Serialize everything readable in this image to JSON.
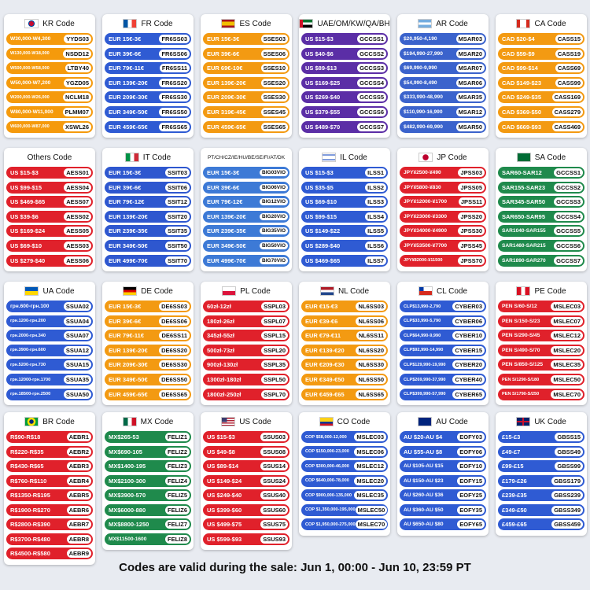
{
  "panels": [
    {
      "title": "KR Code",
      "items": [
        [
          "W30,000-W4,300",
          "YYDS03"
        ],
        [
          "W130,000-W18,000",
          "NSDD12"
        ],
        [
          "W500,000-W58,000",
          "LTBY40"
        ],
        [
          "W50,000-W7,200",
          "YGZD05"
        ],
        [
          "W200,000-W26,000",
          "NCLM18"
        ],
        [
          "W80,000-W11,000",
          "PLMM07"
        ],
        [
          "W600,000-W87,000",
          "XSWL26"
        ]
      ]
    },
    {
      "title": "FR Code",
      "items": [
        [
          "EUR 15€-3€",
          "FR6SS03"
        ],
        [
          "EUR 39€-6€",
          "FR6SS06"
        ],
        [
          "EUR 79€-11€",
          "FR6SS11"
        ],
        [
          "EUR 139€-20€",
          "FR6SS20"
        ],
        [
          "EUR 209€-30€",
          "FR6SS30"
        ],
        [
          "EUR 349€-50€",
          "FR6SS50"
        ],
        [
          "EUR 459€-65€",
          "FR6SS65"
        ]
      ]
    },
    {
      "title": "ES Code",
      "items": [
        [
          "EUR 15€-3€",
          "SSES03"
        ],
        [
          "EUR 39€-6€",
          "SSES06"
        ],
        [
          "EUR 69€-10€",
          "SSES10"
        ],
        [
          "EUR 139€-20€",
          "SSES20"
        ],
        [
          "EUR 209€-30€",
          "SSES30"
        ],
        [
          "EUR 319€-45€",
          "SSES45"
        ],
        [
          "EUR 459€-65€",
          "SSES65"
        ]
      ]
    },
    {
      "title": "UAE/OM/KW/QA/BH",
      "items": [
        [
          "US $15-$3",
          "GCCSS1"
        ],
        [
          "US $40-$6",
          "GCCSS2"
        ],
        [
          "US $89-$13",
          "GCCSS3"
        ],
        [
          "US $169-$25",
          "GCCSS4"
        ],
        [
          "US $269-$40",
          "GCCSS5"
        ],
        [
          "US $379-$55",
          "GCCSS6"
        ],
        [
          "US $489-$70",
          "GCCSS7"
        ]
      ]
    },
    {
      "title": "AR Code",
      "items": [
        [
          "$20,950-4,190",
          "MSAR03"
        ],
        [
          "$194,990-27,990",
          "MSAR20"
        ],
        [
          "$69,990-9,990",
          "MSAR07"
        ],
        [
          "$54,990-8,490",
          "MSAR06"
        ],
        [
          "$333,990-48,990",
          "MSAR35"
        ],
        [
          "$110,990-16,990",
          "MSAR12"
        ],
        [
          "$482,990-69,990",
          "MSAR50"
        ]
      ]
    },
    {
      "title": "CA Code",
      "items": [
        [
          "CAD $20-$4",
          "CASS15"
        ],
        [
          "CAD $59-$9",
          "CASS19"
        ],
        [
          "CAD $99-$14",
          "CASS69"
        ],
        [
          "CAD $149-$23",
          "CASS99"
        ],
        [
          "CAD $249-$35",
          "CASS169"
        ],
        [
          "CAD $369-$50",
          "CASS279"
        ],
        [
          "CAD $669-$93",
          "CASS469"
        ]
      ]
    },
    {
      "title": "Others Code",
      "items": [
        [
          "US $15-$3",
          "AESS01"
        ],
        [
          "US $99-$15",
          "AESS04"
        ],
        [
          "US $469-$65",
          "AESS07"
        ],
        [
          "US $39-$6",
          "AESS02"
        ],
        [
          "US $169-$24",
          "AESS05"
        ],
        [
          "US $69-$10",
          "AESS03"
        ],
        [
          "US $279-$40",
          "AESS06"
        ]
      ]
    },
    {
      "title": "IT Code",
      "items": [
        [
          "EUR 15€-3€",
          "SSIT03"
        ],
        [
          "EUR 39€-6€",
          "SSIT06"
        ],
        [
          "EUR 79€-12€",
          "SSIT12"
        ],
        [
          "EUR 139€-20€",
          "SSIT20"
        ],
        [
          "EUR 239€-35€",
          "SSIT35"
        ],
        [
          "EUR 349€-50€",
          "SSIT50"
        ],
        [
          "EUR 499€-70€",
          "SSIT70"
        ]
      ]
    },
    {
      "title": "PT/CH/CZ/IE/HU/BE/SE/FI/AT/DK",
      "items": [
        [
          "EUR 15€-3€",
          "BIG03VIO"
        ],
        [
          "EUR 39€-6€",
          "BIG06VIO"
        ],
        [
          "EUR 79€-12€",
          "BIG12VIO"
        ],
        [
          "EUR 139€-20€",
          "BIG20VIO"
        ],
        [
          "EUR 239€-35€",
          "BIG35VIO"
        ],
        [
          "EUR 349€-50€",
          "BIG50VIO"
        ],
        [
          "EUR 499€-70€",
          "BIG70VIO"
        ]
      ]
    },
    {
      "title": "IL Code",
      "items": [
        [
          "US $15-$3",
          "ILSS1"
        ],
        [
          "US $35-$5",
          "ILSS2"
        ],
        [
          "US $69-$10",
          "ILSS3"
        ],
        [
          "US $99-$15",
          "ILSS4"
        ],
        [
          "US $149-$22",
          "ILSS5"
        ],
        [
          "US $289-$40",
          "ILSS6"
        ],
        [
          "US $469-$65",
          "ILSS7"
        ]
      ]
    },
    {
      "title": "JP Code",
      "items": [
        [
          "JPY¥2500-¥490",
          "JPSS03"
        ],
        [
          "JPY¥5800-¥830",
          "JPSS05"
        ],
        [
          "JPY¥12000-¥1700",
          "JPSS11"
        ],
        [
          "JPY¥23000-¥3300",
          "JPSS20"
        ],
        [
          "JPY¥34000-¥4900",
          "JPSS30"
        ],
        [
          "JPY¥53500-¥7700",
          "JPSS45"
        ],
        [
          "JPY¥82000-¥11500",
          "JPSS70"
        ]
      ]
    },
    {
      "title": "SA Code",
      "items": [
        [
          "SAR60-SAR12",
          "GCCSS1"
        ],
        [
          "SAR155-SAR23",
          "GCCSS2"
        ],
        [
          "SAR345-SAR50",
          "GCCSS3"
        ],
        [
          "SAR650-SAR95",
          "GCCSS4"
        ],
        [
          "SAR1040-SAR155",
          "GCCSS5"
        ],
        [
          "SAR1460-SAR215",
          "GCCSS6"
        ],
        [
          "SAR1890-SAR270",
          "GCCSS7"
        ]
      ]
    },
    {
      "title": "UA Code",
      "items": [
        [
          "грн.600-грн.100",
          "SSUA02"
        ],
        [
          "грн.1200-грн.200",
          "SSUA04"
        ],
        [
          "грн.2000-грн.340",
          "SSUA07"
        ],
        [
          "грн.3900-грн.600",
          "SSUA12"
        ],
        [
          "грн.5200-грн.730",
          "SSUA15"
        ],
        [
          "грн.12000-грн.1700",
          "SSUA35"
        ],
        [
          "грн.18500-грн.2500",
          "SSUA50"
        ]
      ]
    },
    {
      "title": "DE Code",
      "items": [
        [
          "EUR 15€-3€",
          "DE6SS03"
        ],
        [
          "EUR 39€-6€",
          "DE6SS06"
        ],
        [
          "EUR 79€-11€",
          "DE6SS11"
        ],
        [
          "EUR 139€-20€",
          "DE6SS20"
        ],
        [
          "EUR 209€-30€",
          "DE6SS30"
        ],
        [
          "EUR 349€-50€",
          "DE6SS50"
        ],
        [
          "EUR 459€-65€",
          "DE6SS65"
        ]
      ]
    },
    {
      "title": "PL Code",
      "items": [
        [
          "60zł-12zł",
          "SSPL03"
        ],
        [
          "180zł-26zł",
          "SSPL07"
        ],
        [
          "345zł-55zł",
          "SSPL15"
        ],
        [
          "500zł-73zł",
          "SSPL20"
        ],
        [
          "900zł-130zł",
          "SSPL35"
        ],
        [
          "1300zł-180zł",
          "SSPL50"
        ],
        [
          "1800zł-250zł",
          "SSPL70"
        ]
      ]
    },
    {
      "title": "NL Code",
      "items": [
        [
          "EUR €15-€3",
          "NL6SS03"
        ],
        [
          "EUR €39-€6",
          "NL6SS06"
        ],
        [
          "EUR €79-€11",
          "NL6SS11"
        ],
        [
          "EUR €139-€20",
          "NL6SS20"
        ],
        [
          "EUR €209-€30",
          "NL6SS30"
        ],
        [
          "EUR €349-€50",
          "NL6SS50"
        ],
        [
          "EUR €459-€65",
          "NL6SS65"
        ]
      ]
    },
    {
      "title": "CL Code",
      "items": [
        [
          "CLP$13,990-2,790",
          "CYBER03"
        ],
        [
          "CLP$33,990-5,790",
          "CYBER06"
        ],
        [
          "CLP$64,990-9,990",
          "CYBER10"
        ],
        [
          "CLP$92,990-14,990",
          "CYBER15"
        ],
        [
          "CLP$129,990-19,990",
          "CYBER20"
        ],
        [
          "CLP$269,990-37,990",
          "CYBER40"
        ],
        [
          "CLP$399,990-57,990",
          "CYBER65"
        ]
      ]
    },
    {
      "title": "PE Code",
      "items": [
        [
          "PEN S/60-S/12",
          "MSLEC03"
        ],
        [
          "PEN S/150-S/23",
          "MSLEC07"
        ],
        [
          "PEN S/290-S/45",
          "MSLEC12"
        ],
        [
          "PEN S/490-S/70",
          "MSLEC20"
        ],
        [
          "PEN S/850-S/125",
          "MSLEC35"
        ],
        [
          "PEN S/1290-S/180",
          "MSLEC50"
        ],
        [
          "PEN S/1790-S/250",
          "MSLEC70"
        ]
      ]
    },
    {
      "title": "BR Code",
      "items": [
        [
          "R$90-R$18",
          "AEBR1"
        ],
        [
          "R$220-R$35",
          "AEBR2"
        ],
        [
          "R$430-R$65",
          "AEBR3"
        ],
        [
          "R$760-R$110",
          "AEBR4"
        ],
        [
          "R$1350-R$195",
          "AEBR5"
        ],
        [
          "R$1900-R$270",
          "AEBR6"
        ],
        [
          "R$2800-R$390",
          "AEBR7"
        ],
        [
          "R$3700-R$480",
          "AEBR8"
        ],
        [
          "R$4500-R$580",
          "AEBR9"
        ]
      ]
    },
    {
      "title": "MX Code",
      "items": [
        [
          "MX$265-53",
          "FELIZ1"
        ],
        [
          "MX$690-105",
          "FELIZ2"
        ],
        [
          "MX$1400-195",
          "FELIZ3"
        ],
        [
          "MX$2100-300",
          "FELIZ4"
        ],
        [
          "MX$3900-570",
          "FELIZ5"
        ],
        [
          "MX$6000-880",
          "FELIZ6"
        ],
        [
          "MX$8800-1250",
          "FELIZ7"
        ],
        [
          "MX$11500-1600",
          "FELIZ8"
        ]
      ]
    },
    {
      "title": "US Code",
      "items": [
        [
          "US $15-$3",
          "SSUS03"
        ],
        [
          "US $49-$8",
          "SSUS08"
        ],
        [
          "US $89-$14",
          "SSUS14"
        ],
        [
          "US $149-$24",
          "SSUS24"
        ],
        [
          "US $249-$40",
          "SSUS40"
        ],
        [
          "US $399-$60",
          "SSUS60"
        ],
        [
          "US $499-$75",
          "SSUS75"
        ],
        [
          "US $599-$93",
          "SSUS93"
        ]
      ]
    },
    {
      "title": "CO Code",
      "items": [
        [
          "COP $58,000-12,000",
          "MSLEC03"
        ],
        [
          "COP $150,000-23,000",
          "MSLEC06"
        ],
        [
          "COP $300,000-46,000",
          "MSLEC12"
        ],
        [
          "COP $640,000-78,000",
          "MSLEC20"
        ],
        [
          "COP $900,000-135,000",
          "MSLEC35"
        ],
        [
          "COP $1,350,000-195,000",
          "MSLEC50"
        ],
        [
          "COP $1,950,000-275,000",
          "MSLEC70"
        ]
      ]
    },
    {
      "title": "AU Code",
      "items": [
        [
          "AU $20-AU $4",
          "EOFY03"
        ],
        [
          "AU $55-AU $8",
          "EOFY06"
        ],
        [
          "AU $105-AU $15",
          "EOFY10"
        ],
        [
          "AU $150-AU $23",
          "EOFY15"
        ],
        [
          "AU $260-AU $36",
          "EOFY25"
        ],
        [
          "AU $360-AU $50",
          "EOFY35"
        ],
        [
          "AU $650-AU $80",
          "EOFY65"
        ]
      ]
    },
    {
      "title": "UK Code",
      "items": [
        [
          "£15-£3",
          "GBSS15"
        ],
        [
          "£49-£7",
          "GBSS49"
        ],
        [
          "£99-£15",
          "GBSS99"
        ],
        [
          "£179-£26",
          "GBSS179"
        ],
        [
          "£239-£35",
          "GBSS239"
        ],
        [
          "£349-£50",
          "GBSS349"
        ],
        [
          "£459-£65",
          "GBSS459"
        ]
      ]
    }
  ],
  "footer": "Codes are valid during the sale: Jun 1, 00:00 - Jun 10, 23:59 PT"
}
